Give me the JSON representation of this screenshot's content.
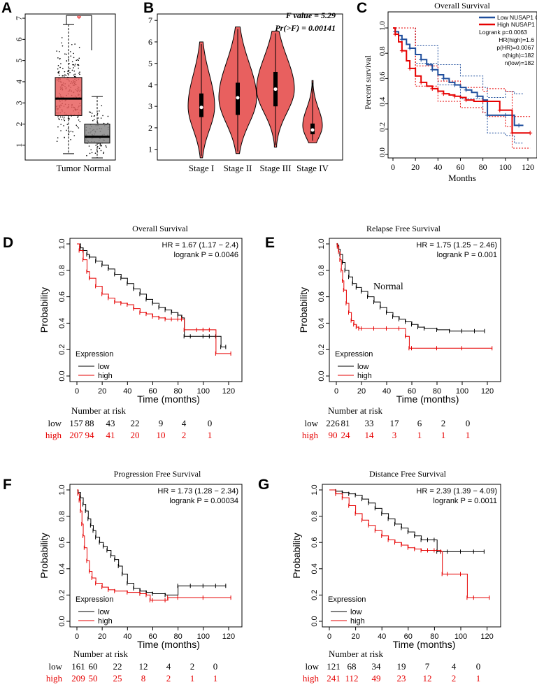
{
  "colors": {
    "red": "#e60000",
    "blue": "#1f4e9c",
    "box_red": "#e8605f",
    "violin": "#e8605f",
    "box_gray": "#888888",
    "black": "#000000"
  },
  "panel_A": {
    "letter": "A",
    "sig_mark": "*",
    "categories": [
      "Tumor",
      "Normal"
    ],
    "yticks": [
      "1",
      "2",
      "3",
      "4",
      "5",
      "6",
      "7"
    ]
  },
  "panel_B": {
    "letter": "B",
    "f_value": "F value = 5.29",
    "pr_value": "Pr(>F) = 0.00141",
    "categories": [
      "Stage I",
      "Stage II",
      "Stage III",
      "Stage IV"
    ],
    "yticks": [
      "1",
      "2",
      "3",
      "4",
      "5",
      "6",
      "7"
    ]
  },
  "panel_C": {
    "letter": "C",
    "title": "Overall Survival",
    "ylabel": "Percent survival",
    "xlabel": "Months",
    "legend": [
      "Low NUSAP1 Group",
      "High NUSAP1 Group"
    ],
    "stats": [
      "Logrank p=0.0063",
      "HR(high)=1.6",
      "p(HR)=0.0067",
      "n(high)=182",
      "n(low)=182"
    ],
    "yticks": [
      "0.0",
      "0.2",
      "0.4",
      "0.6",
      "0.8",
      "1.0"
    ],
    "xticks": [
      "0",
      "20",
      "40",
      "60",
      "80",
      "100",
      "120"
    ]
  },
  "panel_D": {
    "letter": "D",
    "title": "Overall Survival",
    "hr": "HR = 1.67 (1.17 − 2.4)",
    "logrank": "logrank P = 0.0046",
    "xlabel": "Time (months)",
    "ylabel": "Probability",
    "legend_title": "Expression",
    "legend": [
      "low",
      "high"
    ],
    "risk_title": "Number at risk",
    "risk_low_label": "low",
    "risk_high_label": "high",
    "risk_low": [
      "157",
      "88",
      "43",
      "22",
      "9",
      "4",
      "0"
    ],
    "risk_high": [
      "207",
      "94",
      "41",
      "20",
      "10",
      "2",
      "1"
    ],
    "xticks": [
      "0",
      "20",
      "40",
      "60",
      "80",
      "100",
      "120"
    ],
    "yticks": [
      "0.0",
      "0.2",
      "0.4",
      "0.6",
      "0.8",
      "1.0"
    ]
  },
  "panel_E": {
    "letter": "E",
    "title": "Relapse Free Survival",
    "hr": "HR = 1.75 (1.25 − 2.46)",
    "logrank": "logrank P = 0.001",
    "annotation": "Normal",
    "xlabel": "Time (months)",
    "ylabel": "Probability",
    "legend_title": "Expression",
    "legend": [
      "low",
      "high"
    ],
    "risk_title": "Number at risk",
    "risk_low_label": "low",
    "risk_high_label": "high",
    "risk_low": [
      "226",
      "81",
      "33",
      "17",
      "6",
      "2",
      "0"
    ],
    "risk_high": [
      "90",
      "24",
      "14",
      "3",
      "1",
      "1",
      "1"
    ],
    "xticks": [
      "0",
      "20",
      "40",
      "60",
      "80",
      "100",
      "120"
    ],
    "yticks": [
      "0.0",
      "0.2",
      "0.4",
      "0.6",
      "0.8",
      "1.0"
    ]
  },
  "panel_F": {
    "letter": "F",
    "title": "Progression Free Survival",
    "hr": "HR = 1.73 (1.28 − 2.34)",
    "logrank": "logrank P = 0.00034",
    "xlabel": "Time (months)",
    "ylabel": "Probability",
    "legend_title": "Expression",
    "legend": [
      "low",
      "high"
    ],
    "risk_title": "Number at risk",
    "risk_low_label": "low",
    "risk_high_label": "high",
    "risk_low": [
      "161",
      "60",
      "22",
      "12",
      "4",
      "2",
      "0"
    ],
    "risk_high": [
      "209",
      "50",
      "25",
      "8",
      "2",
      "1",
      "1"
    ],
    "xticks": [
      "0",
      "20",
      "40",
      "60",
      "80",
      "100",
      "120"
    ],
    "yticks": [
      "0.0",
      "0.2",
      "0.4",
      "0.6",
      "0.8",
      "1.0"
    ]
  },
  "panel_G": {
    "letter": "G",
    "title": "Distance Free Survival",
    "hr": "HR = 2.39 (1.39 − 4.09)",
    "logrank": "logrank P = 0.0011",
    "xlabel": "Time (months)",
    "ylabel": "Probability",
    "legend_title": "Expression",
    "legend": [
      "low",
      "high"
    ],
    "risk_title": "Number at risk",
    "risk_low_label": "low",
    "risk_high_label": "high",
    "risk_low": [
      "121",
      "68",
      "34",
      "19",
      "7",
      "4",
      "0"
    ],
    "risk_high": [
      "241",
      "112",
      "49",
      "23",
      "12",
      "2",
      "1"
    ],
    "xticks": [
      "0",
      "20",
      "40",
      "60",
      "80",
      "100",
      "120"
    ],
    "yticks": [
      "0.0",
      "0.2",
      "0.4",
      "0.6",
      "0.8",
      "1.0"
    ]
  },
  "chart_data": [
    {
      "type": "box",
      "id": "A",
      "categories": [
        "Tumor",
        "Normal"
      ],
      "series": [
        {
          "name": "Tumor",
          "min": 0.6,
          "q1": 2.4,
          "median": 3.2,
          "q3": 4.2,
          "max": 6.7
        },
        {
          "name": "Normal",
          "min": 0.4,
          "q1": 1.1,
          "median": 1.4,
          "q3": 2.0,
          "max": 3.3
        }
      ],
      "ylim": [
        0.3,
        7.2
      ]
    },
    {
      "type": "violin",
      "id": "B",
      "categories": [
        "Stage I",
        "Stage II",
        "Stage III",
        "Stage IV"
      ],
      "series": [
        {
          "name": "Stage I",
          "min": 0.6,
          "max": 6.0,
          "q1": 2.5,
          "median": 2.95,
          "q3": 3.6,
          "mode": 3.0
        },
        {
          "name": "Stage II",
          "min": 0.8,
          "max": 6.7,
          "q1": 2.6,
          "median": 3.4,
          "q3": 4.1,
          "mode": 3.4
        },
        {
          "name": "Stage III",
          "min": 1.1,
          "max": 6.5,
          "q1": 3.0,
          "median": 3.8,
          "q3": 4.6,
          "mode": 3.8
        },
        {
          "name": "Stage IV",
          "min": 1.3,
          "max": 4.2,
          "q1": 1.7,
          "median": 1.9,
          "q3": 2.2,
          "mode": 2.1
        }
      ],
      "ylim": [
        0.5,
        7.3
      ]
    },
    {
      "type": "line",
      "id": "C",
      "xlim": [
        0,
        125
      ],
      "ylim": [
        -0.05,
        1.05
      ],
      "series": [
        {
          "name": "Low NUSAP1 Group",
          "color": "blue",
          "x": [
            0,
            2,
            5,
            8,
            12,
            15,
            20,
            25,
            30,
            35,
            40,
            45,
            50,
            55,
            60,
            65,
            70,
            75,
            80,
            84,
            90,
            100,
            108,
            112,
            116
          ],
          "y": [
            1.0,
            0.97,
            0.94,
            0.91,
            0.87,
            0.84,
            0.79,
            0.75,
            0.71,
            0.67,
            0.63,
            0.6,
            0.57,
            0.55,
            0.53,
            0.51,
            0.49,
            0.46,
            0.43,
            0.31,
            0.31,
            0.31,
            0.23,
            0.23,
            0.23
          ]
        },
        {
          "name": "High NUSAP1 Group",
          "color": "red",
          "x": [
            0,
            2,
            5,
            8,
            12,
            15,
            20,
            25,
            30,
            35,
            40,
            45,
            50,
            55,
            60,
            65,
            72,
            80,
            84,
            95,
            100,
            106,
            110,
            122
          ],
          "y": [
            1.0,
            0.95,
            0.89,
            0.82,
            0.74,
            0.68,
            0.62,
            0.57,
            0.54,
            0.52,
            0.5,
            0.48,
            0.47,
            0.46,
            0.45,
            0.43,
            0.42,
            0.42,
            0.42,
            0.35,
            0.35,
            0.17,
            0.17,
            0.17
          ]
        }
      ],
      "ci_low": {
        "x": [
          0,
          20,
          40,
          60,
          80,
          84,
          100,
          108,
          116
        ],
        "upper": [
          1.0,
          0.86,
          0.71,
          0.62,
          0.53,
          0.45,
          0.5,
          0.48,
          0.48
        ],
        "lower": [
          1.0,
          0.72,
          0.55,
          0.44,
          0.33,
          0.17,
          0.15,
          0.09,
          0.09
        ]
      },
      "ci_high": {
        "x": [
          0,
          20,
          40,
          60,
          80,
          84,
          100,
          106,
          122
        ],
        "upper": [
          1.0,
          0.7,
          0.58,
          0.53,
          0.5,
          0.52,
          0.5,
          0.3,
          0.3
        ],
        "lower": [
          1.0,
          0.54,
          0.42,
          0.37,
          0.33,
          0.3,
          0.22,
          0.05,
          0.05
        ]
      }
    },
    {
      "type": "line",
      "id": "D",
      "xlim": [
        0,
        125
      ],
      "ylim": [
        0,
        1
      ],
      "series": [
        {
          "name": "low",
          "color": "black",
          "x": [
            0,
            3,
            5,
            8,
            10,
            15,
            20,
            25,
            30,
            35,
            40,
            45,
            50,
            55,
            60,
            65,
            70,
            75,
            80,
            83,
            85,
            90,
            100,
            105,
            110,
            114,
            118
          ],
          "y": [
            1.0,
            0.97,
            0.95,
            0.92,
            0.9,
            0.87,
            0.84,
            0.81,
            0.77,
            0.74,
            0.7,
            0.66,
            0.62,
            0.58,
            0.55,
            0.52,
            0.5,
            0.48,
            0.46,
            0.44,
            0.3,
            0.3,
            0.3,
            0.3,
            0.3,
            0.22,
            0.22
          ]
        },
        {
          "name": "high",
          "color": "red",
          "x": [
            0,
            2,
            5,
            8,
            10,
            15,
            20,
            25,
            30,
            35,
            40,
            45,
            50,
            55,
            60,
            65,
            70,
            75,
            80,
            83,
            85,
            95,
            100,
            105,
            110,
            122
          ],
          "y": [
            1.0,
            0.95,
            0.88,
            0.79,
            0.74,
            0.68,
            0.62,
            0.59,
            0.56,
            0.55,
            0.54,
            0.51,
            0.48,
            0.47,
            0.45,
            0.44,
            0.43,
            0.43,
            0.43,
            0.43,
            0.35,
            0.35,
            0.35,
            0.35,
            0.17,
            0.17
          ]
        }
      ]
    },
    {
      "type": "line",
      "id": "E",
      "xlim": [
        0,
        125
      ],
      "ylim": [
        0,
        1
      ],
      "series": [
        {
          "name": "low",
          "color": "black",
          "x": [
            0,
            1,
            2,
            3,
            5,
            7,
            10,
            13,
            16,
            20,
            25,
            30,
            35,
            40,
            45,
            50,
            55,
            60,
            65,
            70,
            80,
            90,
            100,
            110,
            118
          ],
          "y": [
            1.0,
            0.99,
            0.96,
            0.92,
            0.86,
            0.8,
            0.75,
            0.7,
            0.67,
            0.64,
            0.6,
            0.56,
            0.52,
            0.48,
            0.45,
            0.43,
            0.41,
            0.39,
            0.37,
            0.36,
            0.35,
            0.34,
            0.34,
            0.34,
            0.34
          ]
        },
        {
          "name": "high",
          "color": "red",
          "x": [
            0,
            1,
            2,
            3,
            4,
            5,
            6,
            8,
            10,
            12,
            14,
            16,
            18,
            20,
            30,
            40,
            50,
            55,
            58,
            60,
            80,
            100,
            124
          ],
          "y": [
            1.0,
            0.98,
            0.94,
            0.88,
            0.8,
            0.72,
            0.65,
            0.55,
            0.48,
            0.42,
            0.39,
            0.37,
            0.36,
            0.36,
            0.36,
            0.36,
            0.36,
            0.3,
            0.21,
            0.21,
            0.21,
            0.21,
            0.21
          ]
        }
      ]
    },
    {
      "type": "line",
      "id": "F",
      "xlim": [
        0,
        125
      ],
      "ylim": [
        0,
        1
      ],
      "series": [
        {
          "name": "low",
          "color": "black",
          "x": [
            0,
            1,
            3,
            5,
            7,
            9,
            11,
            13,
            15,
            18,
            21,
            24,
            27,
            30,
            33,
            36,
            40,
            45,
            50,
            55,
            60,
            70,
            80,
            90,
            100,
            110,
            118
          ],
          "y": [
            1.0,
            0.98,
            0.94,
            0.89,
            0.84,
            0.78,
            0.73,
            0.69,
            0.64,
            0.6,
            0.57,
            0.54,
            0.5,
            0.47,
            0.42,
            0.36,
            0.29,
            0.25,
            0.23,
            0.22,
            0.21,
            0.2,
            0.27,
            0.27,
            0.27,
            0.27,
            0.27
          ]
        },
        {
          "name": "high",
          "color": "red",
          "x": [
            0,
            1,
            2,
            3,
            4,
            5,
            6,
            8,
            10,
            12,
            15,
            20,
            25,
            30,
            40,
            50,
            55,
            58,
            60,
            70,
            72,
            80,
            100,
            122
          ],
          "y": [
            1.0,
            0.97,
            0.92,
            0.84,
            0.74,
            0.65,
            0.56,
            0.46,
            0.38,
            0.33,
            0.29,
            0.26,
            0.24,
            0.23,
            0.22,
            0.21,
            0.2,
            0.16,
            0.16,
            0.16,
            0.18,
            0.18,
            0.18,
            0.18
          ]
        }
      ]
    },
    {
      "type": "line",
      "id": "G",
      "xlim": [
        0,
        125
      ],
      "ylim": [
        0,
        1
      ],
      "series": [
        {
          "name": "low",
          "color": "black",
          "x": [
            0,
            5,
            10,
            15,
            20,
            25,
            30,
            35,
            40,
            45,
            50,
            55,
            60,
            65,
            70,
            75,
            80,
            82,
            85,
            90,
            100,
            110,
            118
          ],
          "y": [
            1.0,
            0.99,
            0.98,
            0.97,
            0.96,
            0.93,
            0.9,
            0.86,
            0.82,
            0.78,
            0.74,
            0.71,
            0.68,
            0.65,
            0.62,
            0.62,
            0.62,
            0.53,
            0.53,
            0.53,
            0.53,
            0.53,
            0.53
          ]
        },
        {
          "name": "high",
          "color": "red",
          "x": [
            0,
            5,
            10,
            15,
            20,
            25,
            30,
            35,
            40,
            45,
            50,
            55,
            60,
            65,
            70,
            75,
            80,
            85,
            86,
            90,
            100,
            105,
            110,
            122
          ],
          "y": [
            1.0,
            0.97,
            0.94,
            0.88,
            0.82,
            0.77,
            0.73,
            0.69,
            0.65,
            0.62,
            0.6,
            0.58,
            0.56,
            0.55,
            0.54,
            0.54,
            0.54,
            0.53,
            0.36,
            0.36,
            0.36,
            0.18,
            0.18,
            0.18
          ]
        }
      ]
    }
  ]
}
